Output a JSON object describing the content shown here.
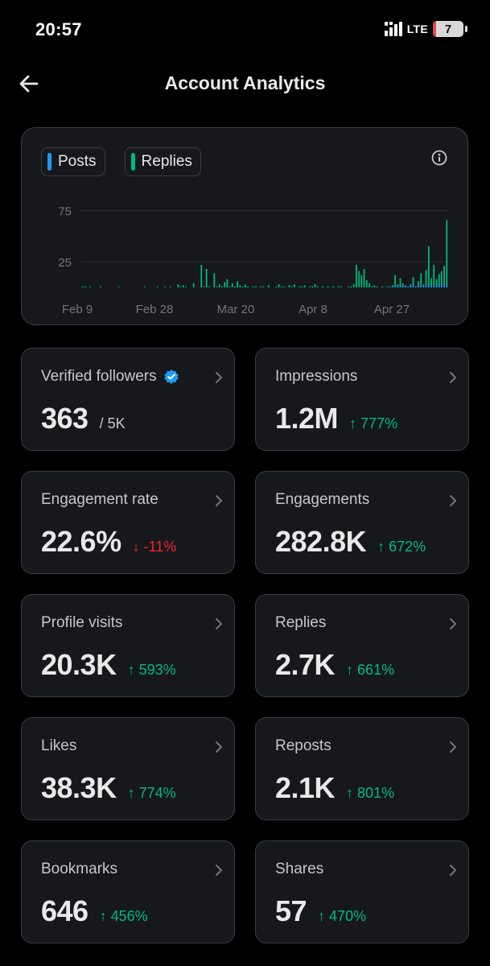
{
  "status_bar": {
    "time": "20:57",
    "network": "LTE",
    "battery_level": "7",
    "battery_fill_fraction": 0.07,
    "battery_warning_color": "#e5484d",
    "signal_icon": "signal-icon"
  },
  "header": {
    "title": "Account Analytics",
    "back_icon": "arrow-left-icon"
  },
  "chart": {
    "legend": [
      {
        "label": "Posts",
        "color": "#1d9bf0"
      },
      {
        "label": "Replies",
        "color": "#00ba7c"
      }
    ],
    "info_icon": "info-icon"
  },
  "chart_data": {
    "type": "bar",
    "y_ticks": [
      "75",
      "25"
    ],
    "x_ticks": [
      "Feb 9",
      "Feb 28",
      "Mar 20",
      "Apr 8",
      "Apr 27"
    ],
    "ylim": [
      0,
      85
    ],
    "grid": true,
    "legend_position": "top-left",
    "series": [
      {
        "name": "Posts",
        "color": "#1d9bf0",
        "values": [
          0,
          0,
          0,
          0,
          0,
          0,
          0,
          0,
          0,
          0,
          0,
          0,
          0,
          0,
          0,
          0,
          0,
          0,
          0,
          0,
          0,
          0,
          0,
          0,
          0,
          0,
          0,
          0,
          0,
          0,
          0,
          0,
          0,
          0,
          0,
          0,
          0,
          0,
          0,
          0,
          0,
          0,
          0,
          0,
          0,
          0,
          0,
          0,
          0,
          0,
          0,
          0,
          0,
          0,
          0,
          0,
          0,
          0,
          0,
          0,
          0,
          0,
          0,
          0,
          0,
          0,
          0,
          0,
          0,
          0,
          0,
          0,
          0,
          0,
          0,
          0,
          0,
          0,
          0,
          0,
          0,
          0,
          0,
          0,
          0,
          0,
          0,
          0,
          0,
          0,
          0,
          0,
          0,
          0,
          0,
          0,
          0,
          0,
          0,
          0,
          0,
          0,
          0,
          0,
          0,
          0,
          0,
          0,
          0,
          0,
          0,
          0,
          0,
          0,
          0,
          0,
          0,
          0,
          0,
          0,
          1,
          1,
          2,
          1,
          2,
          2,
          1,
          2,
          3,
          1,
          2,
          2,
          1,
          2,
          3,
          2,
          1,
          2,
          3,
          3,
          2,
          3
        ]
      },
      {
        "name": "Replies",
        "color": "#00ba7c",
        "values": [
          1,
          1,
          0,
          1,
          0,
          0,
          0,
          1,
          0,
          0,
          0,
          0,
          0,
          0,
          1,
          0,
          0,
          0,
          0,
          0,
          0,
          0,
          0,
          0,
          1,
          0,
          0,
          0,
          0,
          1,
          0,
          0,
          1,
          0,
          1,
          0,
          0,
          3,
          1,
          2,
          1,
          0,
          0,
          4,
          0,
          0,
          22,
          1,
          18,
          1,
          0,
          14,
          1,
          3,
          1,
          5,
          8,
          1,
          4,
          1,
          6,
          2,
          1,
          3,
          1,
          0,
          1,
          1,
          0,
          1,
          1,
          0,
          2,
          0,
          0,
          1,
          3,
          1,
          1,
          0,
          2,
          1,
          3,
          0,
          1,
          1,
          2,
          0,
          1,
          1,
          3,
          1,
          0,
          1,
          0,
          1,
          0,
          1,
          0,
          1,
          1,
          0,
          0,
          1,
          1,
          3,
          22,
          16,
          12,
          18,
          7,
          4,
          1,
          2,
          1,
          0,
          1,
          0,
          1,
          1,
          2,
          12,
          3,
          9,
          4,
          1,
          1,
          3,
          10,
          1,
          6,
          14,
          3,
          17,
          40,
          9,
          22,
          8,
          13,
          16,
          21,
          66
        ]
      }
    ]
  },
  "metrics": [
    {
      "label": "Verified followers",
      "value": "363",
      "sub": "/ 5K",
      "verified": true
    },
    {
      "label": "Impressions",
      "value": "1.2M",
      "change": "↑ 777%",
      "direction": "up"
    },
    {
      "label": "Engagement rate",
      "value": "22.6%",
      "change": "↓ -11%",
      "direction": "down"
    },
    {
      "label": "Engagements",
      "value": "282.8K",
      "change": "↑ 672%",
      "direction": "up"
    },
    {
      "label": "Profile visits",
      "value": "20.3K",
      "change": "↑ 593%",
      "direction": "up"
    },
    {
      "label": "Replies",
      "value": "2.7K",
      "change": "↑ 661%",
      "direction": "up"
    },
    {
      "label": "Likes",
      "value": "38.3K",
      "change": "↑ 774%",
      "direction": "up"
    },
    {
      "label": "Reposts",
      "value": "2.1K",
      "change": "↑ 801%",
      "direction": "up"
    },
    {
      "label": "Bookmarks",
      "value": "646",
      "change": "↑ 456%",
      "direction": "up"
    },
    {
      "label": "Shares",
      "value": "57",
      "change": "↑ 470%",
      "direction": "up"
    }
  ]
}
